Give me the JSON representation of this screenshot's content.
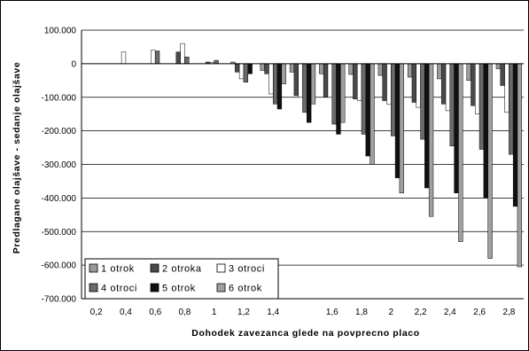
{
  "chart_data": {
    "type": "bar",
    "xlabel": "Dohodek zavezanca glede na povprecno placo",
    "ylabel": "Predlagane olajšave - sedanje olajšave",
    "ylim": [
      -700000,
      100000
    ],
    "yticks": [
      100000,
      0,
      -100000,
      -200000,
      -300000,
      -400000,
      -500000,
      -600000,
      -700000
    ],
    "ytick_labels": [
      "100.000",
      "0",
      "-100.000",
      "-200.000",
      "-300.000",
      "-400.000",
      "-500.000",
      "-600.000",
      "-700.000"
    ],
    "categories": [
      "0,2",
      "0,4",
      "0,6",
      "0,8",
      "1",
      "1,2",
      "1,4",
      "",
      "1,6",
      "1,8",
      "2",
      "2,2",
      "2,4",
      "2,6",
      "2,8"
    ],
    "grid": true,
    "legend_position": "bottom-left",
    "series": [
      {
        "name": "1 otrok",
        "color": "#9a9a9a",
        "values": [
          0,
          0,
          0,
          0,
          0,
          5000,
          -20000,
          -25000,
          -30000,
          -32000,
          -35000,
          -40000,
          -45000,
          -50000,
          -15000
        ]
      },
      {
        "name": "2 otroka",
        "color": "#4a4a4a",
        "values": [
          0,
          0,
          0,
          35000,
          5000,
          -25000,
          -30000,
          -95000,
          -100000,
          -105000,
          -110000,
          -115000,
          -120000,
          -125000,
          -65000
        ]
      },
      {
        "name": "3 otroci",
        "color": "#ffffff",
        "values": [
          0,
          35000,
          40000,
          60000,
          3000,
          -45000,
          -90000,
          -100000,
          -100000,
          -110000,
          -120000,
          -130000,
          -140000,
          -150000,
          -145000
        ]
      },
      {
        "name": "4 otroci",
        "color": "#6a6a6a",
        "values": [
          0,
          0,
          38000,
          20000,
          10000,
          -55000,
          -120000,
          -145000,
          -180000,
          -210000,
          -215000,
          -225000,
          -245000,
          -255000,
          -270000
        ]
      },
      {
        "name": "5 otrok",
        "color": "#111111",
        "values": [
          0,
          0,
          0,
          0,
          0,
          -30000,
          -135000,
          -175000,
          -210000,
          -275000,
          -340000,
          -370000,
          -385000,
          -400000,
          -425000
        ]
      },
      {
        "name": "6 otrok",
        "color": "#a0a0a0",
        "values": [
          0,
          0,
          0,
          0,
          0,
          0,
          -60000,
          -120000,
          -175000,
          -300000,
          -385000,
          -455000,
          -530000,
          -580000,
          -605000
        ]
      }
    ]
  }
}
